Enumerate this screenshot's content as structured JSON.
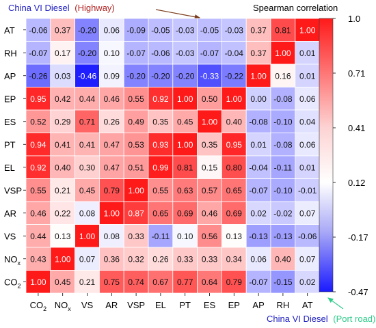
{
  "chart_data": {
    "type": "heatmap",
    "title_upper_left": {
      "prefix": "China VI Diesel",
      "suffix": "(Highway)"
    },
    "title_lower_right": {
      "prefix": "China VI Diesel",
      "suffix": "(Port road)"
    },
    "colorbar_title": "Spearman correlation",
    "colorbar_ticks": [
      "1.0",
      "0.71",
      "0.41",
      "0.12",
      "-0.17",
      "-0.47"
    ],
    "colorbar_range": [
      -0.47,
      1.0
    ],
    "colors": {
      "low": "#1a1aff",
      "mid": "#ffffff",
      "high": "#ff1a1a",
      "highway_label": "#b22222",
      "port_label": "#2ecc8a",
      "diesel_label": "#2020c0",
      "arrow_highway": "#7a3b1a",
      "arrow_port": "#2ecc8a"
    },
    "x_labels": [
      "CO",
      "NO",
      "VS",
      "AR",
      "VSP",
      "EL",
      "PT",
      "ES",
      "EP",
      "AP",
      "RH",
      "AT"
    ],
    "x_label_subscripts": [
      "2",
      "x",
      "",
      "",
      "",
      "",
      "",
      "",
      "",
      "",
      "",
      ""
    ],
    "y_labels": [
      "AT",
      "RH",
      "AP",
      "EP",
      "ES",
      "PT",
      "EL",
      "VSP",
      "AR",
      "VS",
      "NO",
      "CO"
    ],
    "y_label_subscripts": [
      "",
      "",
      "",
      "",
      "",
      "",
      "",
      "",
      "",
      "",
      "x",
      "2"
    ],
    "values": [
      [
        "-0.06",
        "0.37",
        "-0.20",
        "0.06",
        "-0.09",
        "-0.05",
        "-0.03",
        "-0.05",
        "-0.03",
        "0.37",
        "0.81",
        "1.00"
      ],
      [
        "-0.07",
        "0.17",
        "-0.20",
        "0.10",
        "-0.07",
        "-0.06",
        "-0.03",
        "-0.07",
        "-0.04",
        "0.37",
        "1.00",
        "0.01"
      ],
      [
        "-0.26",
        "0.03",
        "-0.46",
        "0.09",
        "-0.20",
        "-0.20",
        "-0.20",
        "-0.33",
        "-0.22",
        "1.00",
        "0.16",
        "0.01"
      ],
      [
        "0.95",
        "0.42",
        "0.44",
        "0.46",
        "0.55",
        "0.92",
        "1.00",
        "0.50",
        "1.00",
        "0.00",
        "-0.08",
        "0.06"
      ],
      [
        "0.52",
        "0.29",
        "0.71",
        "0.26",
        "0.49",
        "0.35",
        "0.45",
        "1.00",
        "0.40",
        "-0.08",
        "-0.10",
        "0.04"
      ],
      [
        "0.94",
        "0.41",
        "0.41",
        "0.47",
        "0.53",
        "0.93",
        "1.00",
        "0.35",
        "0.95",
        "0.01",
        "-0.08",
        "0.06"
      ],
      [
        "0.92",
        "0.40",
        "0.30",
        "0.47",
        "0.51",
        "0.99",
        "0.81",
        "0.15",
        "0.80",
        "-0.04",
        "-0.11",
        "0.01"
      ],
      [
        "0.55",
        "0.21",
        "0.45",
        "0.79",
        "1.00",
        "0.55",
        "0.63",
        "0.57",
        "0.65",
        "-0.07",
        "-0.10",
        "-0.01"
      ],
      [
        "0.46",
        "0.22",
        "0.08",
        "1.00",
        "0.87",
        "0.65",
        "0.69",
        "0.46",
        "0.69",
        "0.02",
        "-0.02",
        "0.07"
      ],
      [
        "0.44",
        "0.13",
        "1.00",
        "0.08",
        "0.33",
        "-0.11",
        "0.10",
        "0.56",
        "0.13",
        "-0.13",
        "-0.13",
        "-0.06"
      ],
      [
        "0.43",
        "1.00",
        "0.07",
        "0.36",
        "0.32",
        "0.26",
        "0.33",
        "0.33",
        "0.34",
        "0.06",
        "0.40",
        "0.07"
      ],
      [
        "1.00",
        "0.45",
        "0.21",
        "0.75",
        "0.74",
        "0.67",
        "0.77",
        "0.64",
        "0.79",
        "-0.07",
        "-0.15",
        "0.02"
      ]
    ]
  }
}
